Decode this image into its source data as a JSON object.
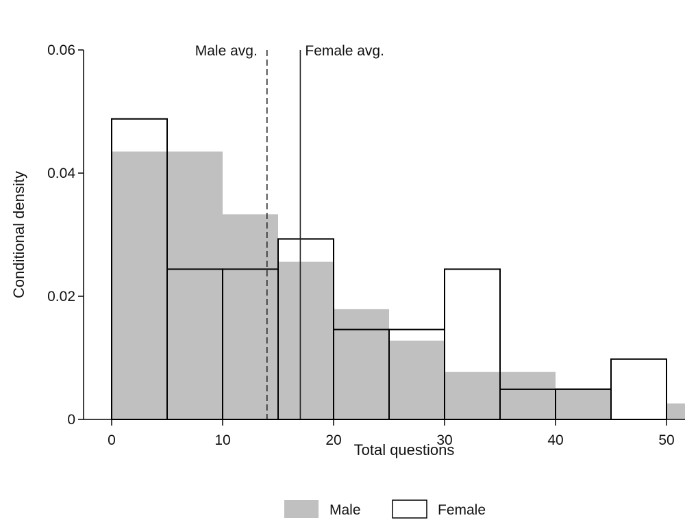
{
  "chart_data": {
    "type": "bar",
    "subtype": "overlaid-histogram",
    "xlabel": "Total questions",
    "ylabel": "Conditional density",
    "xlim": [
      -2.5,
      51.5
    ],
    "ylim": [
      0,
      0.06
    ],
    "xticks": [
      0,
      10,
      20,
      30,
      40,
      50
    ],
    "yticks": [
      0,
      0.02,
      0.04,
      0.06
    ],
    "ytick_labels": [
      "0",
      "0.02",
      "0.04",
      "0.06"
    ],
    "bin_width": 5,
    "bin_starts": [
      0,
      5,
      10,
      15,
      20,
      25,
      30,
      35,
      40,
      45,
      50
    ],
    "series": [
      {
        "name": "Male",
        "style": "filled",
        "color": "#c0c0c0",
        "values": [
          0.0435,
          0.0435,
          0.0333,
          0.0256,
          0.0179,
          0.0128,
          0.0077,
          0.0077,
          0.0051,
          0.0,
          0.0026
        ]
      },
      {
        "name": "Female",
        "style": "outline",
        "color": "#000000",
        "values": [
          0.0488,
          0.0244,
          0.0244,
          0.0293,
          0.0146,
          0.0146,
          0.0244,
          0.0049,
          0.0049,
          0.0098,
          0.0
        ]
      }
    ],
    "reference_lines": [
      {
        "label": "Male avg.",
        "x": 14.0,
        "style": "dashed"
      },
      {
        "label": "Female avg.",
        "x": 17.0,
        "style": "solid"
      }
    ],
    "grid": false,
    "legend": {
      "position": "bottom",
      "entries": [
        {
          "label": "Male",
          "style": "filled"
        },
        {
          "label": "Female",
          "style": "outline"
        }
      ]
    }
  }
}
